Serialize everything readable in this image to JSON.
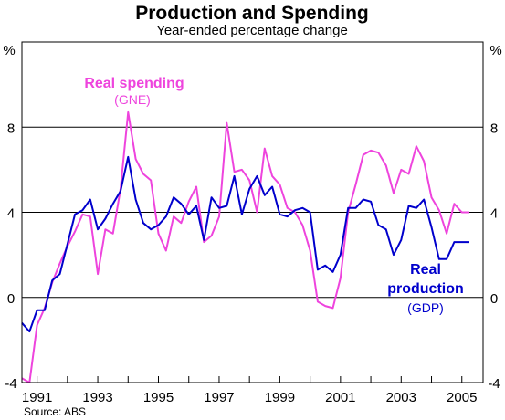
{
  "chart_data": {
    "type": "line",
    "title": "Production and Spending",
    "subtitle": "Year-ended percentage change",
    "unit_left": "%",
    "unit_right": "%",
    "source": "Source: ABS",
    "xlim": [
      1990.5,
      2005.7
    ],
    "ylim": [
      -4,
      12
    ],
    "y_ticks": [
      -4,
      0,
      4,
      8
    ],
    "y_tick_labels": [
      "-4",
      "0",
      "4",
      "8"
    ],
    "x_tick_labels": [
      "1991",
      "1993",
      "1995",
      "1997",
      "1999",
      "2001",
      "2003",
      "2005"
    ],
    "x_tick_positions": [
      1991,
      1993,
      1995,
      1997,
      1999,
      2001,
      2003,
      2005
    ],
    "grid": true,
    "colors": {
      "spending": "#ee44dd",
      "production": "#0000cc",
      "grid": "#000000"
    },
    "series": [
      {
        "key": "spending",
        "name_line1": "Real spending",
        "name_line2": "(GNE)",
        "x": [
          1990.5,
          1990.75,
          1991.0,
          1991.25,
          1991.5,
          1991.75,
          1992.0,
          1992.25,
          1992.5,
          1992.75,
          1993.0,
          1993.25,
          1993.5,
          1993.75,
          1994.0,
          1994.25,
          1994.5,
          1994.75,
          1995.0,
          1995.25,
          1995.5,
          1995.75,
          1996.0,
          1996.25,
          1996.5,
          1996.75,
          1997.0,
          1997.25,
          1997.5,
          1997.75,
          1998.0,
          1998.25,
          1998.5,
          1998.75,
          1999.0,
          1999.25,
          1999.5,
          1999.75,
          2000.0,
          2000.25,
          2000.5,
          2000.75,
          2001.0,
          2001.25,
          2001.5,
          2001.75,
          2002.0,
          2002.25,
          2002.5,
          2002.75,
          2003.0,
          2003.25,
          2003.5,
          2003.75,
          2004.0,
          2004.25,
          2004.5,
          2004.75,
          2005.0,
          2005.25
        ],
        "values": [
          -3.8,
          -4.0,
          -1.3,
          -0.5,
          0.7,
          1.6,
          2.4,
          3.1,
          3.9,
          3.8,
          1.1,
          3.2,
          3.0,
          5.1,
          8.7,
          6.5,
          5.8,
          5.5,
          3.0,
          2.2,
          3.8,
          3.5,
          4.5,
          5.2,
          2.6,
          2.9,
          3.8,
          8.2,
          5.9,
          6.0,
          5.5,
          4.0,
          7.0,
          5.7,
          5.3,
          4.2,
          4.0,
          3.4,
          2.2,
          -0.2,
          -0.4,
          -0.5,
          0.9,
          4.0,
          5.3,
          6.7,
          6.9,
          6.8,
          6.2,
          4.9,
          6.0,
          5.8,
          7.1,
          6.4,
          4.7,
          4.1,
          3.0,
          4.4,
          4.0,
          4.0
        ]
      },
      {
        "key": "production",
        "name_line1": "Real",
        "name_line2": "production",
        "name_line3": "(GDP)",
        "x": [
          1990.5,
          1990.75,
          1991.0,
          1991.25,
          1991.5,
          1991.75,
          1992.0,
          1992.25,
          1992.5,
          1992.75,
          1993.0,
          1993.25,
          1993.5,
          1993.75,
          1994.0,
          1994.25,
          1994.5,
          1994.75,
          1995.0,
          1995.25,
          1995.5,
          1995.75,
          1996.0,
          1996.25,
          1996.5,
          1996.75,
          1997.0,
          1997.25,
          1997.5,
          1997.75,
          1998.0,
          1998.25,
          1998.5,
          1998.75,
          1999.0,
          1999.25,
          1999.5,
          1999.75,
          2000.0,
          2000.25,
          2000.5,
          2000.75,
          2001.0,
          2001.25,
          2001.5,
          2001.75,
          2002.0,
          2002.25,
          2002.5,
          2002.75,
          2003.0,
          2003.25,
          2003.5,
          2003.75,
          2004.0,
          2004.25,
          2004.5,
          2004.75,
          2005.0,
          2005.25
        ],
        "values": [
          -1.2,
          -1.6,
          -0.6,
          -0.6,
          0.8,
          1.1,
          2.5,
          3.9,
          4.1,
          4.6,
          3.2,
          3.7,
          4.4,
          5.0,
          6.6,
          4.6,
          3.5,
          3.2,
          3.4,
          3.8,
          4.7,
          4.4,
          3.9,
          4.3,
          2.7,
          4.7,
          4.2,
          4.3,
          5.7,
          3.9,
          5.1,
          5.7,
          4.8,
          5.2,
          3.9,
          3.8,
          4.1,
          4.2,
          4.0,
          1.3,
          1.5,
          1.2,
          2.0,
          4.2,
          4.2,
          4.6,
          4.5,
          3.4,
          3.2,
          2.0,
          2.7,
          4.3,
          4.2,
          4.6,
          3.3,
          1.8,
          1.8,
          2.6,
          2.6,
          2.6
        ]
      }
    ]
  }
}
